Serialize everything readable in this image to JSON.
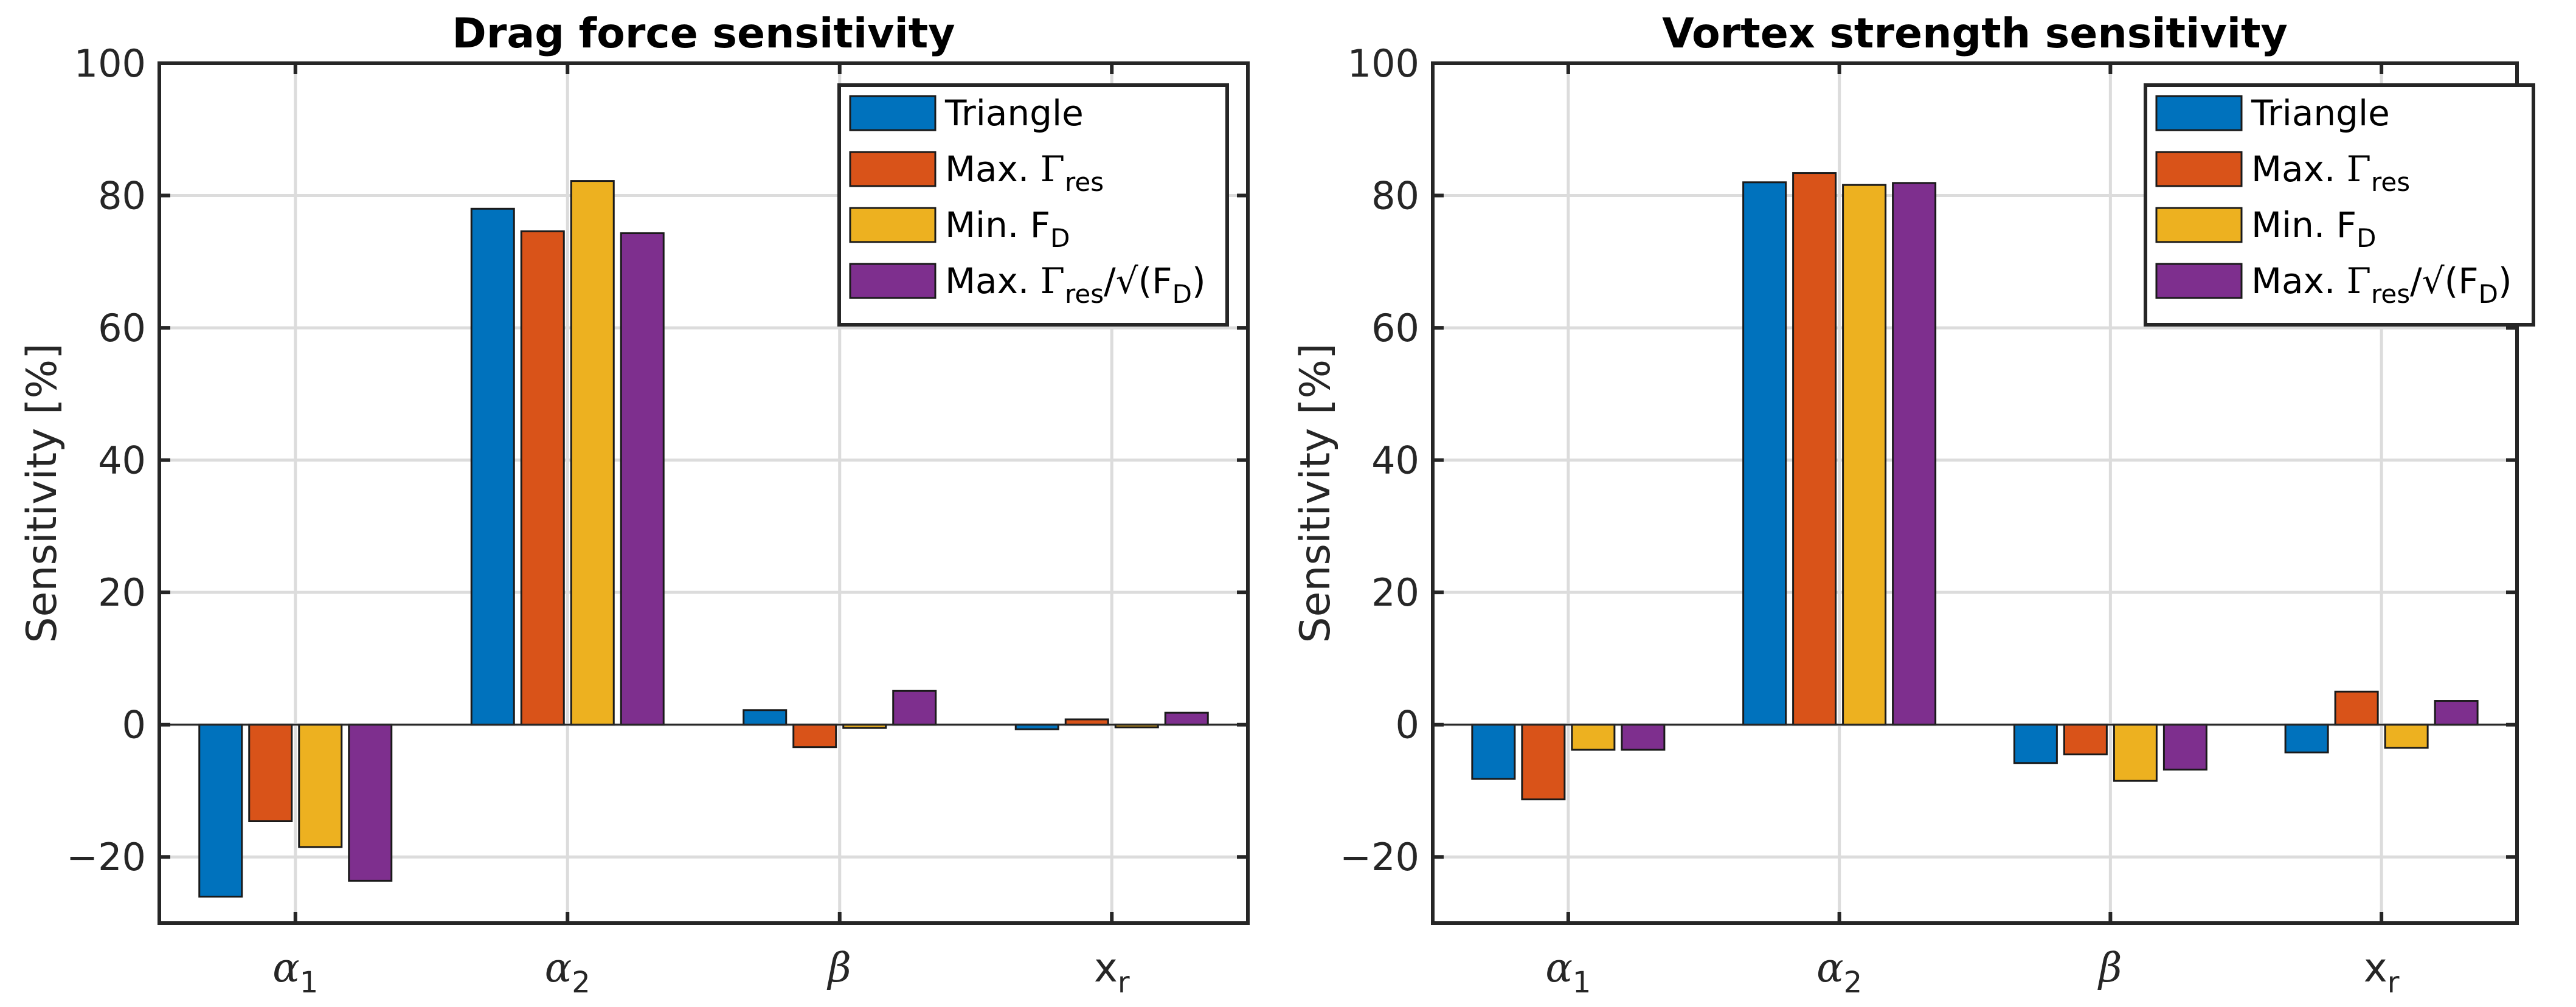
{
  "chart_data": [
    {
      "type": "bar",
      "title": "Drag force sensitivity",
      "ylabel": "Sensitivity [%]",
      "xlabel": "",
      "ylim": [
        -30,
        100
      ],
      "yticks": [
        -20,
        0,
        20,
        40,
        60,
        80,
        100
      ],
      "categories": [
        {
          "base": "α",
          "sub": "1"
        },
        {
          "base": "α",
          "sub": "2"
        },
        {
          "base": "β",
          "sub": ""
        },
        {
          "base": "x",
          "sub": "r"
        }
      ],
      "series": [
        {
          "name": "Triangle",
          "color": "#0072BD",
          "values": [
            -26,
            78,
            2.2,
            -0.7
          ]
        },
        {
          "name": "Max. Γres",
          "color": "#D95319",
          "values": [
            -14.6,
            74.6,
            -3.4,
            0.8
          ]
        },
        {
          "name": "Min. FD",
          "color": "#EDB120",
          "values": [
            -18.5,
            82.2,
            -0.5,
            -0.4
          ]
        },
        {
          "name": "Max. Γres/√(FD)",
          "color": "#7E2F8E",
          "values": [
            -23.6,
            74.3,
            5.1,
            1.8
          ]
        }
      ],
      "legend": {
        "position": "top-right",
        "entries": [
          [
            {
              "t": "Triangle"
            }
          ],
          [
            {
              "t": "Max. "
            },
            {
              "t": "Γ",
              "c": "sym"
            },
            {
              "t": "res",
              "c": "sub"
            }
          ],
          [
            {
              "t": "Min. F"
            },
            {
              "t": "D",
              "c": "sub"
            }
          ],
          [
            {
              "t": "Max. "
            },
            {
              "t": "Γ",
              "c": "sym"
            },
            {
              "t": "res",
              "c": "sub"
            },
            {
              "t": "/√(F"
            },
            {
              "t": "D",
              "c": "sub"
            },
            {
              "t": ")"
            }
          ]
        ]
      }
    },
    {
      "type": "bar",
      "title": "Vortex strength sensitivity",
      "ylabel": "Sensitivity [%]",
      "xlabel": "",
      "ylim": [
        -30,
        100
      ],
      "yticks": [
        -20,
        0,
        20,
        40,
        60,
        80,
        100
      ],
      "categories": [
        {
          "base": "α",
          "sub": "1"
        },
        {
          "base": "α",
          "sub": "2"
        },
        {
          "base": "β",
          "sub": ""
        },
        {
          "base": "x",
          "sub": "r"
        }
      ],
      "series": [
        {
          "name": "Triangle",
          "color": "#0072BD",
          "values": [
            -8.2,
            82,
            -5.8,
            -4.2
          ]
        },
        {
          "name": "Max. Γres",
          "color": "#D95319",
          "values": [
            -11.3,
            83.4,
            -4.5,
            5
          ]
        },
        {
          "name": "Min. FD",
          "color": "#EDB120",
          "values": [
            -3.8,
            81.6,
            -8.5,
            -3.5
          ]
        },
        {
          "name": "Max. Γres/√(FD)",
          "color": "#7E2F8E",
          "values": [
            -3.8,
            81.9,
            -6.8,
            3.6
          ]
        }
      ],
      "legend": {
        "position": "top-right",
        "entries": [
          [
            {
              "t": "Triangle"
            }
          ],
          [
            {
              "t": "Max. "
            },
            {
              "t": "Γ",
              "c": "sym"
            },
            {
              "t": "res",
              "c": "sub"
            }
          ],
          [
            {
              "t": "Min. F"
            },
            {
              "t": "D",
              "c": "sub"
            }
          ],
          [
            {
              "t": "Max. "
            },
            {
              "t": "Γ",
              "c": "sym"
            },
            {
              "t": "res",
              "c": "sub"
            },
            {
              "t": "/√(F"
            },
            {
              "t": "D",
              "c": "sub"
            },
            {
              "t": ")"
            }
          ]
        ]
      }
    }
  ]
}
